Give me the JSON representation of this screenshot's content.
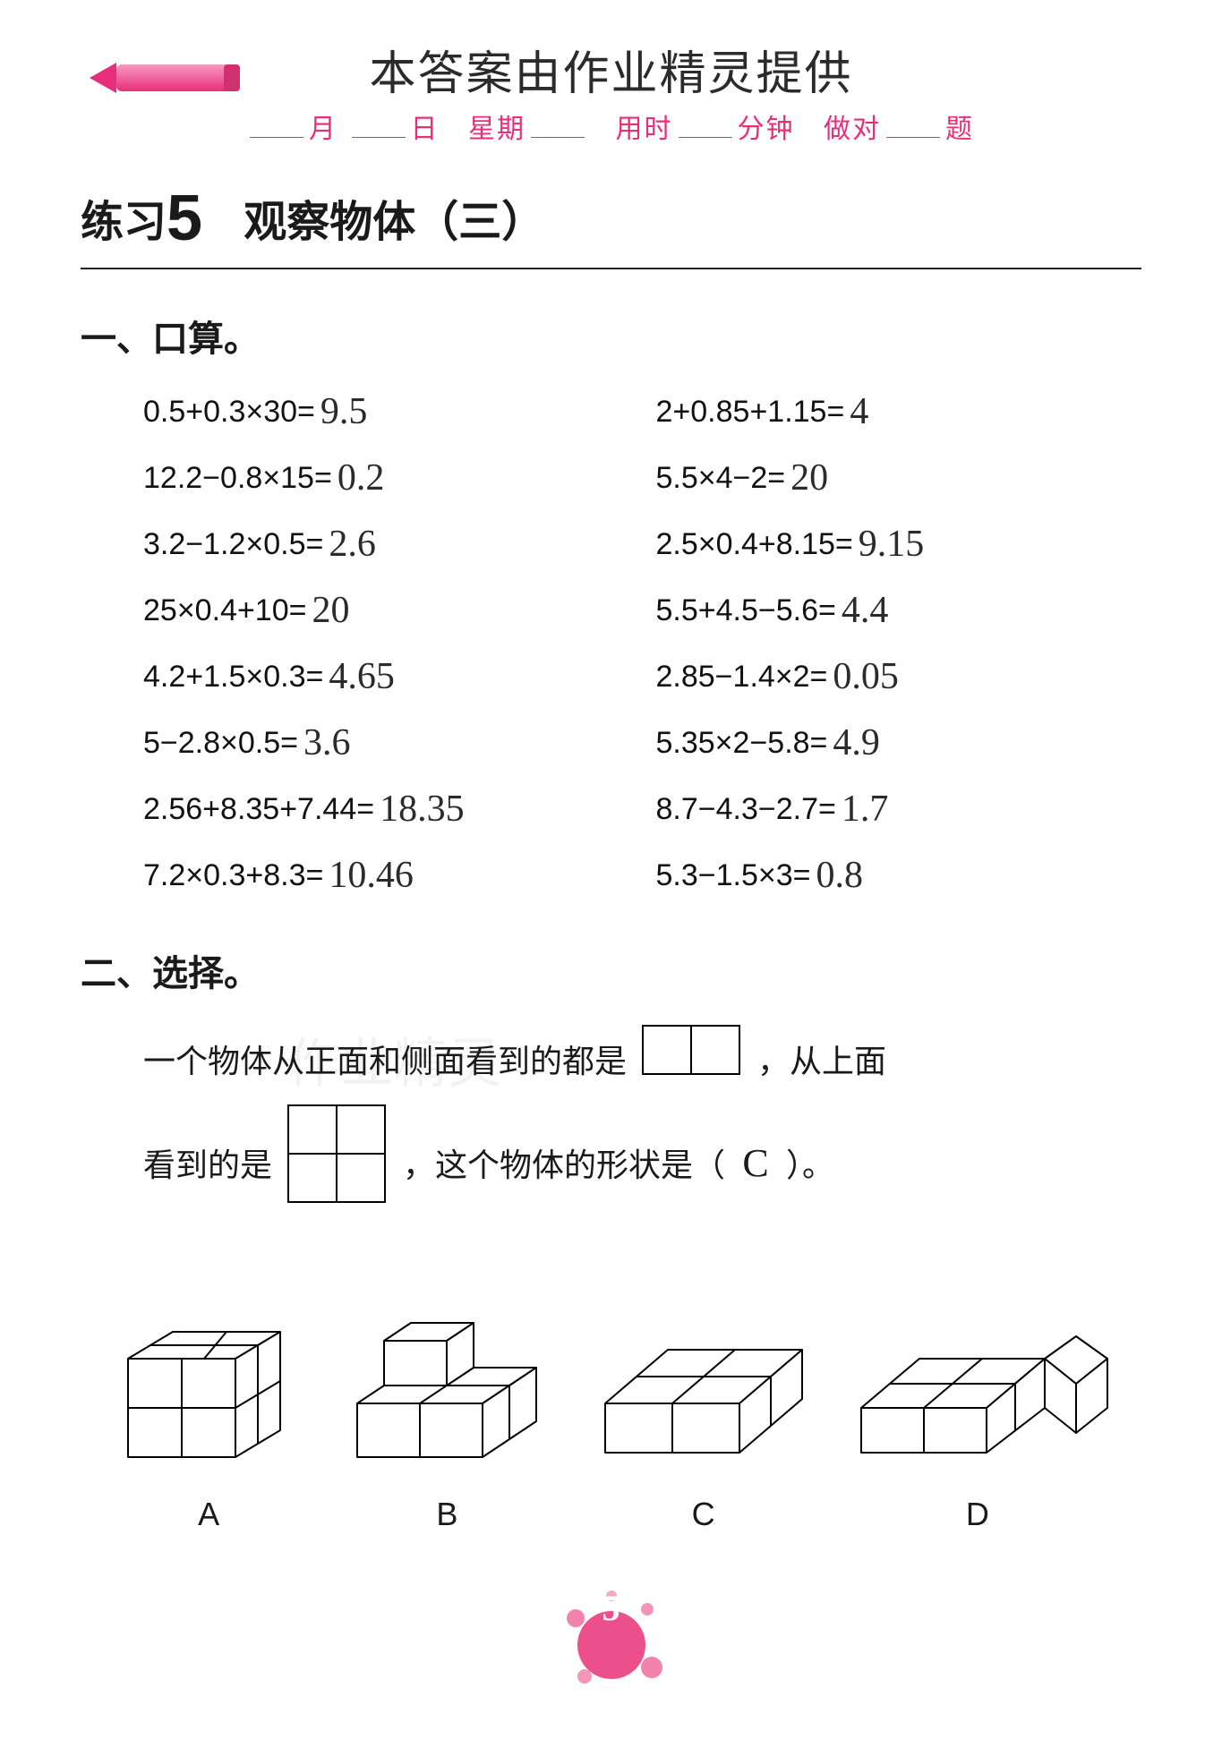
{
  "colors": {
    "pink": "#e82e7a",
    "text": "#1a1a1a",
    "handwriting": "#2b2b2b",
    "splat": "#ed4f8a"
  },
  "watermark_title": "本答案由作业精灵提供",
  "header": {
    "month": "月",
    "day": "日",
    "weekday": "星期",
    "time": "用时",
    "minutes": "分钟",
    "correct": "做对",
    "questions": "题"
  },
  "title": {
    "practice": "练习",
    "number": "5",
    "subtitle": "观察物体（三）"
  },
  "section1": {
    "heading": "一、口算。",
    "items": [
      {
        "expr": "0.5+0.3×30=",
        "ans": "9.5"
      },
      {
        "expr": "2+0.85+1.15=",
        "ans": "4"
      },
      {
        "expr": "12.2−0.8×15=",
        "ans": "0.2"
      },
      {
        "expr": "5.5×4−2=",
        "ans": "20"
      },
      {
        "expr": "3.2−1.2×0.5=",
        "ans": "2.6"
      },
      {
        "expr": "2.5×0.4+8.15=",
        "ans": "9.15"
      },
      {
        "expr": "25×0.4+10=",
        "ans": "20"
      },
      {
        "expr": "5.5+4.5−5.6=",
        "ans": "4.4"
      },
      {
        "expr": "4.2+1.5×0.3=",
        "ans": "4.65"
      },
      {
        "expr": "2.85−1.4×2=",
        "ans": "0.05"
      },
      {
        "expr": "5−2.8×0.5=",
        "ans": "3.6"
      },
      {
        "expr": "5.35×2−5.8=",
        "ans": "4.9"
      },
      {
        "expr": "2.56+8.35+7.44=",
        "ans": "18.35"
      },
      {
        "expr": "8.7−4.3−2.7=",
        "ans": "1.7"
      },
      {
        "expr": "7.2×0.3+8.3=",
        "ans": "10.46"
      },
      {
        "expr": "5.3−1.5×3=",
        "ans": "0.8"
      }
    ]
  },
  "section2": {
    "heading": "二、选择。",
    "text_part1": "一个物体从正面和侧面看到的都是",
    "text_part2": "，从上面",
    "text_part3": "看到的是",
    "text_part4": "，这个物体的形状是（",
    "text_part5": "）。",
    "answer": "C",
    "front_view": {
      "type": "grid",
      "rows": 1,
      "cols": 2,
      "cell": 54,
      "stroke": "#000"
    },
    "top_view": {
      "type": "grid",
      "rows": 2,
      "cols": 2,
      "cell": 54,
      "stroke": "#000"
    },
    "options": [
      {
        "label": "A",
        "svg": "cubeA"
      },
      {
        "label": "B",
        "svg": "cubeB"
      },
      {
        "label": "C",
        "svg": "cubeC"
      },
      {
        "label": "D",
        "svg": "cubeD"
      }
    ]
  },
  "page_number": "5",
  "faint_watermarks": [
    "作业精灵",
    "作业精灵"
  ]
}
